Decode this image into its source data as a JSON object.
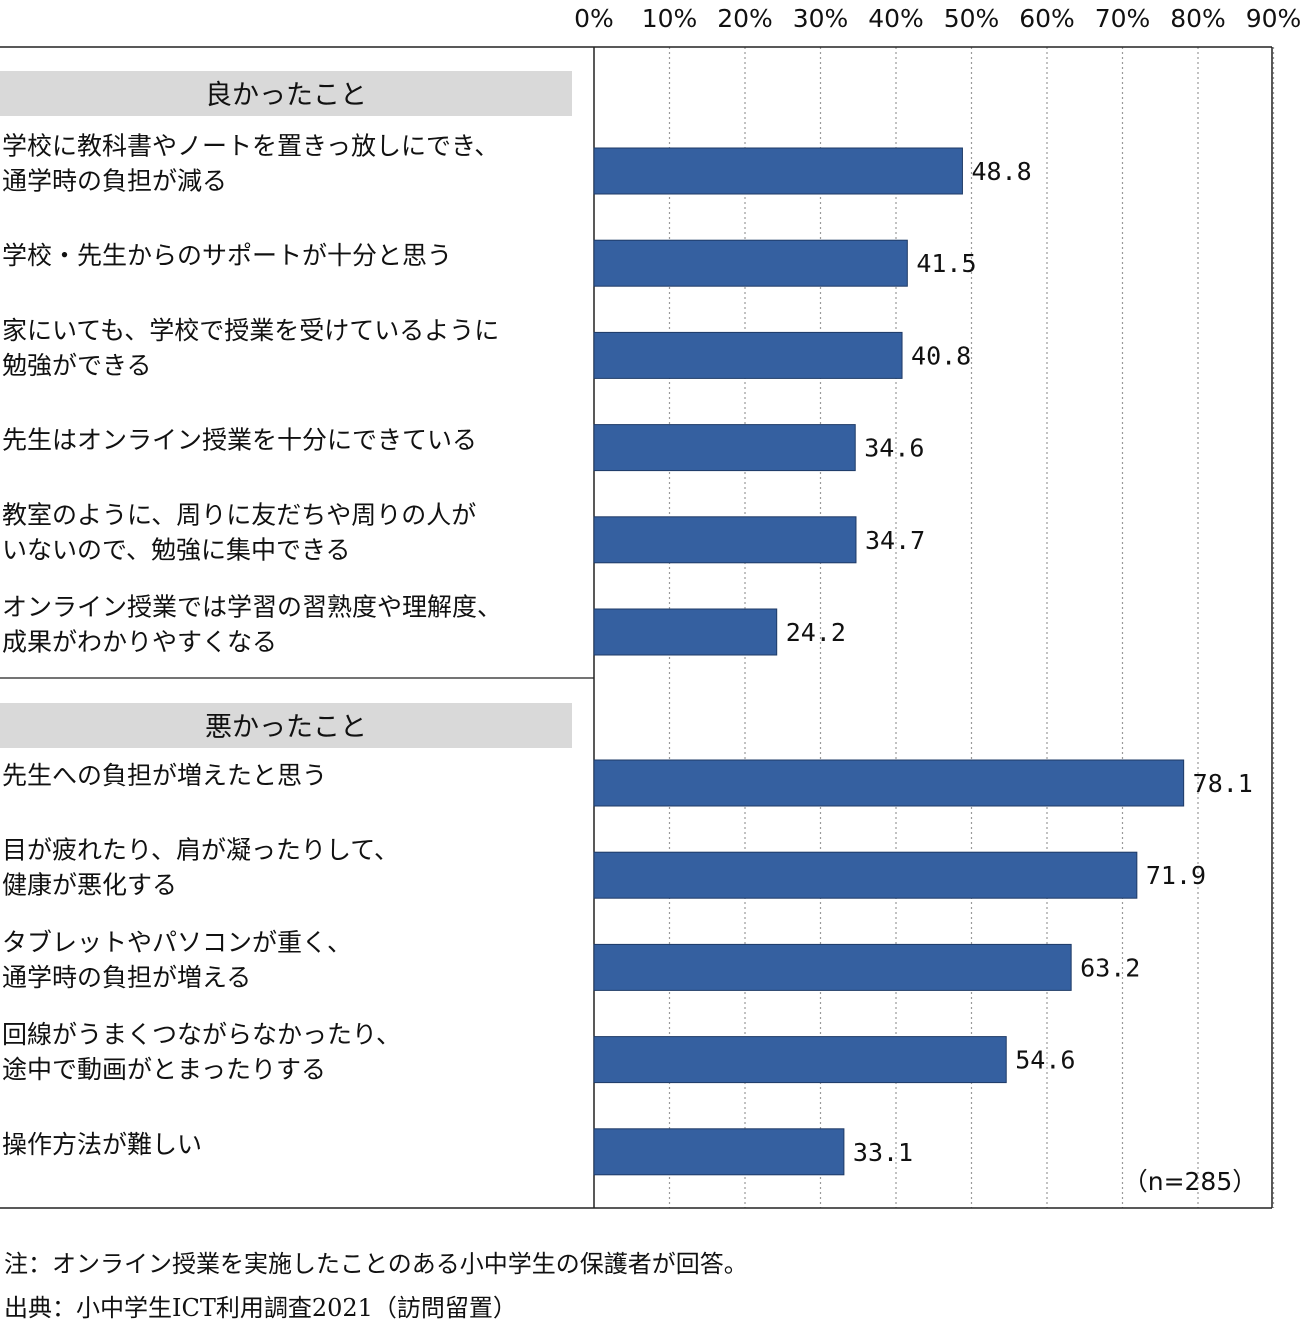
{
  "chart_data": {
    "type": "bar",
    "orientation": "horizontal",
    "x_tick_labels": [
      "0%",
      "10%",
      "20%",
      "30%",
      "40%",
      "50%",
      "60%",
      "70%",
      "80%",
      "90%"
    ],
    "xlim": [
      0,
      90
    ],
    "grid": "vertical dotted",
    "sample_note": "（n=285）",
    "bar_color": "#3560a0",
    "section_bg": "#d9d9d9",
    "groups": [
      {
        "name": "良かったこと",
        "items": [
          {
            "label": [
              "学校に教科書やノートを置きっ放しにでき、",
              "通学時の負担が減る"
            ],
            "value": 48.8,
            "value_label": "48.8"
          },
          {
            "label": [
              "学校・先生からのサポートが十分と思う"
            ],
            "value": 41.5,
            "value_label": "41.5"
          },
          {
            "label": [
              "家にいても、学校で授業を受けているように",
              "勉強ができる"
            ],
            "value": 40.8,
            "value_label": "40.8"
          },
          {
            "label": [
              "先生はオンライン授業を十分にできている"
            ],
            "value": 34.6,
            "value_label": "34.6"
          },
          {
            "label": [
              "教室のように、周りに友だちや周りの人が",
              "いないので、勉強に集中できる"
            ],
            "value": 34.7,
            "value_label": "34.7"
          },
          {
            "label": [
              "オンライン授業では学習の習熟度や理解度、",
              "成果がわかりやすくなる"
            ],
            "value": 24.2,
            "value_label": "24.2"
          }
        ]
      },
      {
        "name": "悪かったこと",
        "items": [
          {
            "label": [
              "先生への負担が増えたと思う"
            ],
            "value": 78.1,
            "value_label": "78.1"
          },
          {
            "label": [
              "目が疲れたり、肩が凝ったりして、",
              "健康が悪化する"
            ],
            "value": 71.9,
            "value_label": "71.9"
          },
          {
            "label": [
              "タブレットやパソコンが重く、",
              "通学時の負担が増える"
            ],
            "value": 63.2,
            "value_label": "63.2"
          },
          {
            "label": [
              "回線がうまくつながらなかったり、",
              "途中で動画がとまったりする"
            ],
            "value": 54.6,
            "value_label": "54.6"
          },
          {
            "label": [
              "操作方法が難しい"
            ],
            "value": 33.1,
            "value_label": "33.1"
          }
        ]
      }
    ]
  },
  "footnotes": {
    "note": "注：オンライン授業を実施したことのある小中学生の保護者が回答。",
    "source": "出典：小中学生ICT利用調査2021（訪問留置）"
  }
}
